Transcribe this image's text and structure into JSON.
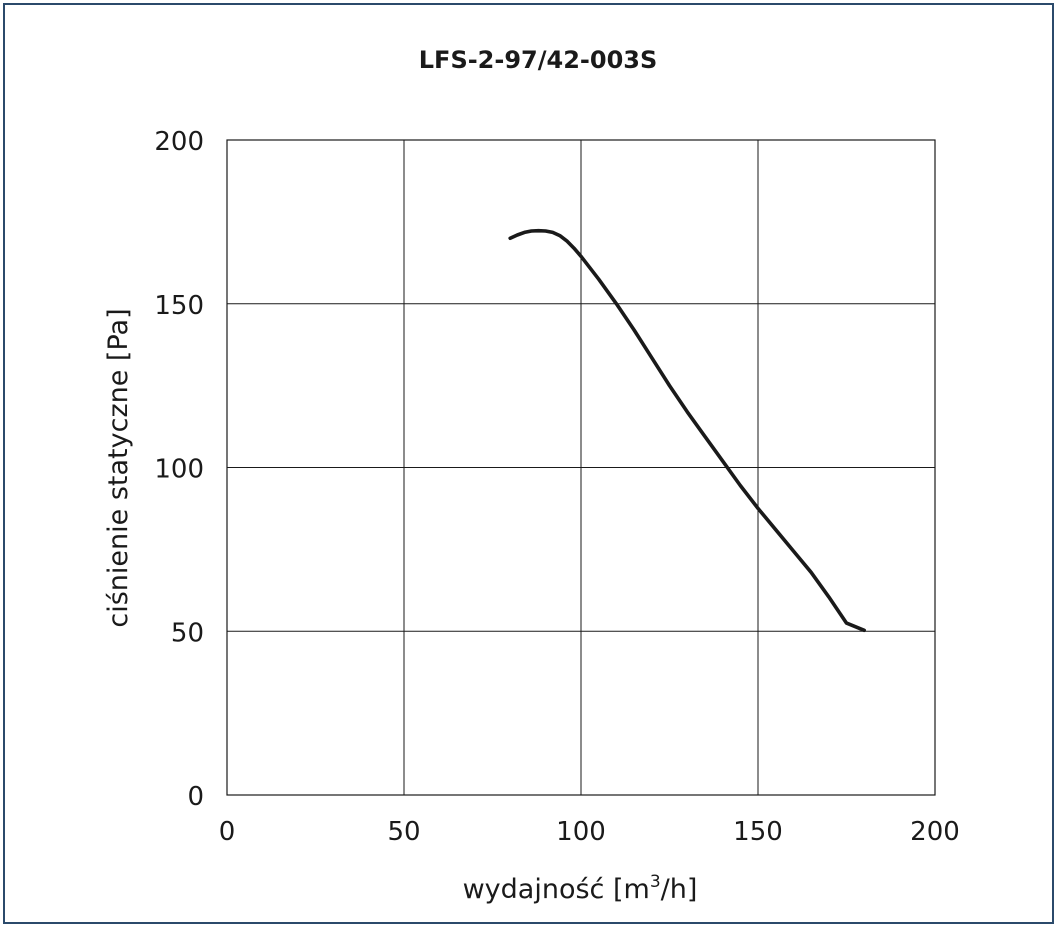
{
  "chart_data": {
    "type": "line",
    "title": "LFS-2-97/42-003S",
    "xlabel": {
      "prefix": "wydajność [m",
      "sup": "3",
      "suffix": "/h]"
    },
    "ylabel": "ciśnienie statyczne [Pa]",
    "xlim": [
      0,
      200
    ],
    "ylim": [
      0,
      200
    ],
    "xticks": [
      0,
      50,
      100,
      150,
      200
    ],
    "yticks": [
      0,
      50,
      100,
      150,
      200
    ],
    "grid": true,
    "series": [
      {
        "color": "#1a1a1a",
        "x": [
          80,
          82,
          84,
          86,
          88,
          90,
          92,
          94,
          96,
          98,
          100,
          105,
          110,
          115,
          120,
          125,
          130,
          135,
          140,
          145,
          150,
          155,
          160,
          165,
          170,
          175,
          180
        ],
        "y": [
          170,
          171,
          171.8,
          172.2,
          172.3,
          172.2,
          171.8,
          170.8,
          169.2,
          167,
          164.5,
          157.5,
          150,
          142,
          133.5,
          125,
          117,
          109.5,
          102,
          94.5,
          87.5,
          81,
          74.5,
          68,
          60.5,
          52.5,
          50.3
        ]
      }
    ]
  }
}
